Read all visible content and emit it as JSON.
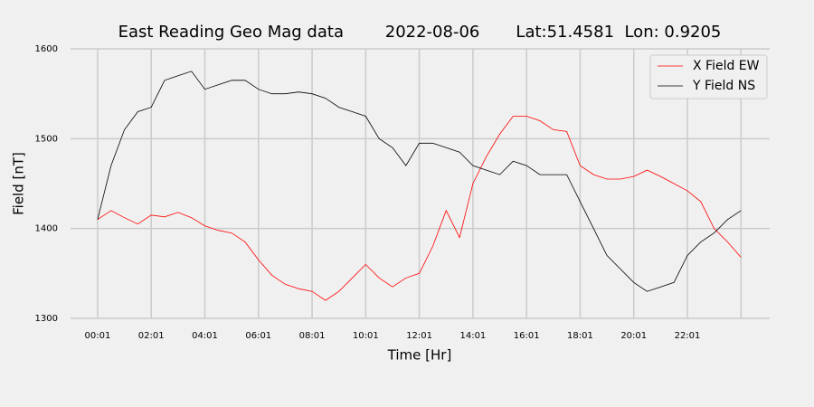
{
  "chart_data": {
    "type": "line",
    "title": "East Reading Geo Mag data        2022-08-06       Lat:51.4581  Lon: 0.9205",
    "x_label": "Time  [Hr]",
    "y_label": "Field  [nT]",
    "x": [
      0,
      0.5,
      1,
      1.5,
      2,
      2.5,
      3,
      3.5,
      4,
      4.5,
      5,
      5.5,
      6,
      6.5,
      7,
      7.5,
      8,
      8.5,
      9,
      9.5,
      10,
      10.5,
      11,
      11.5,
      12,
      12.5,
      13,
      13.5,
      14,
      14.5,
      15,
      15.5,
      16,
      16.5,
      17,
      17.5,
      18,
      18.5,
      19,
      19.5,
      20,
      20.5,
      21,
      21.5,
      22,
      22.5,
      23,
      23.5,
      24
    ],
    "series": [
      {
        "name": "X Field EW",
        "color": "#ff0000",
        "values": [
          1410,
          1420,
          1412,
          1405,
          1415,
          1413,
          1418,
          1412,
          1403,
          1398,
          1395,
          1385,
          1365,
          1348,
          1338,
          1333,
          1330,
          1320,
          1330,
          1345,
          1360,
          1345,
          1335,
          1345,
          1350,
          1380,
          1420,
          1390,
          1450,
          1480,
          1505,
          1525,
          1525,
          1520,
          1510,
          1508,
          1470,
          1460,
          1455,
          1455,
          1458,
          1465,
          1458,
          1450,
          1442,
          1430,
          1400,
          1385,
          1368
        ]
      },
      {
        "name": "Y Field NS",
        "color": "#000000",
        "values": [
          1410,
          1470,
          1510,
          1530,
          1535,
          1565,
          1570,
          1575,
          1555,
          1560,
          1565,
          1565,
          1555,
          1550,
          1550,
          1552,
          1550,
          1545,
          1535,
          1530,
          1525,
          1500,
          1490,
          1470,
          1495,
          1495,
          1490,
          1485,
          1470,
          1465,
          1460,
          1475,
          1470,
          1460,
          1460,
          1460,
          1430,
          1400,
          1370,
          1355,
          1340,
          1330,
          1335,
          1340,
          1370,
          1385,
          1395,
          1410,
          1420
        ]
      }
    ],
    "xlim": [
      -1.01,
      25.07
    ],
    "xticks": [
      {
        "value": 0,
        "label": "00:01"
      },
      {
        "value": 2,
        "label": "02:01"
      },
      {
        "value": 4,
        "label": "04:01"
      },
      {
        "value": 6,
        "label": "06:01"
      },
      {
        "value": 8,
        "label": "08:01"
      },
      {
        "value": 10,
        "label": "10:01"
      },
      {
        "value": 12,
        "label": "12:01"
      },
      {
        "value": 14,
        "label": "14:01"
      },
      {
        "value": 16,
        "label": "16:01"
      },
      {
        "value": 18,
        "label": "18:01"
      },
      {
        "value": 20,
        "label": "20:01"
      },
      {
        "value": 22,
        "label": "22:01"
      },
      {
        "value": 24,
        "label": null
      }
    ],
    "ylim": [
      1300,
      1600
    ],
    "yticks": [
      1300,
      1400,
      1500,
      1600
    ],
    "grid": true,
    "legend": "upper right"
  }
}
